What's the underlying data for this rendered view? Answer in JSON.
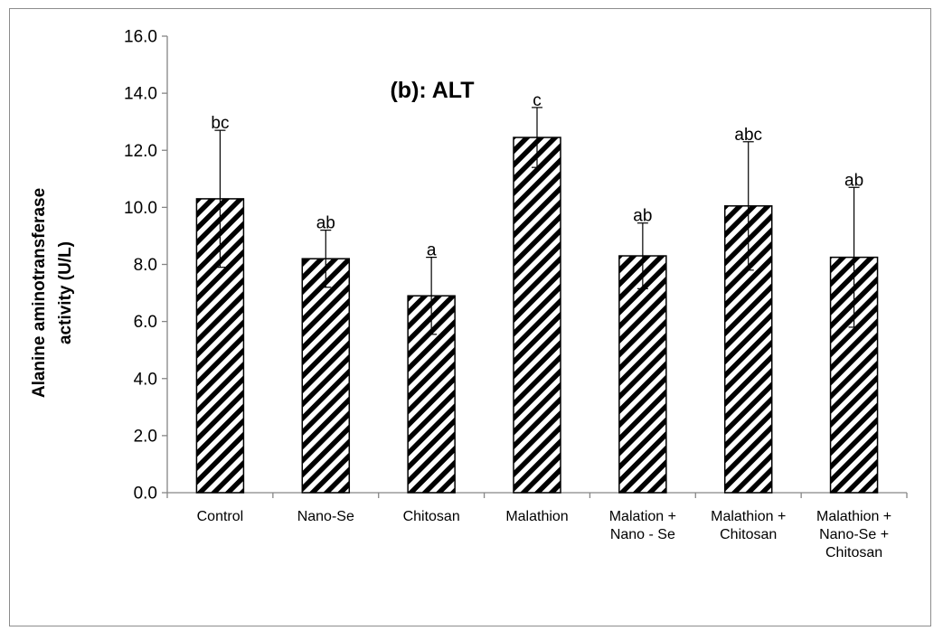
{
  "chart_data": {
    "type": "bar",
    "title": "(b): ALT",
    "ylabel_lines": [
      "Alanine aminotransferase",
      "activity (U/L)"
    ],
    "xlabel": "",
    "ylim": [
      0,
      16
    ],
    "yticks": [
      "0.0",
      "2.0",
      "4.0",
      "6.0",
      "8.0",
      "10.0",
      "12.0",
      "14.0",
      "16.0"
    ],
    "grid": false,
    "bar_fill": "diagonal hatch",
    "bar_color": "#000000",
    "categories": [
      [
        "Control"
      ],
      [
        "Nano-Se"
      ],
      [
        "Chitosan"
      ],
      [
        "Malathion"
      ],
      [
        "Malation +",
        "Nano - Se"
      ],
      [
        "Malathion +",
        "Chitosan"
      ],
      [
        "Malathion +",
        "Nano-Se +",
        "Chitosan"
      ]
    ],
    "values": [
      10.3,
      8.2,
      6.9,
      12.45,
      8.3,
      10.05,
      8.25
    ],
    "error_bars": [
      2.4,
      1.0,
      1.35,
      1.05,
      1.15,
      2.25,
      2.45
    ],
    "significance_labels": [
      "bc",
      "ab",
      "a",
      "c",
      "ab",
      "abc",
      "ab"
    ]
  }
}
